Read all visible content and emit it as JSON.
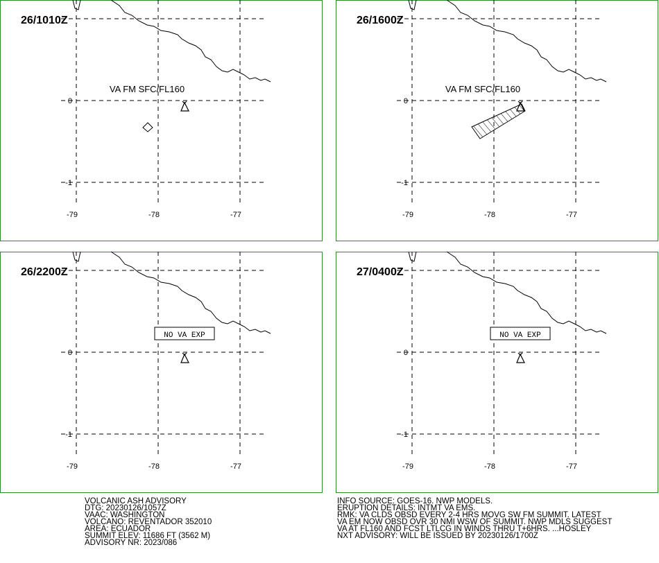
{
  "panels": [
    {
      "time": "26/1010Z",
      "annotation": "VA FM SFC/FL160",
      "boxed": false,
      "xticks": [
        -79,
        -78,
        -77
      ],
      "yticks": [
        0,
        -1
      ]
    },
    {
      "time": "26/1600Z",
      "annotation": "VA FM SFC/FL160",
      "boxed": false,
      "xticks": [
        -79,
        -78,
        -77
      ],
      "yticks": [
        0,
        -1
      ]
    },
    {
      "time": "26/2200Z",
      "annotation": "NO VA EXP",
      "boxed": true,
      "xticks": [
        -79,
        -78,
        -77
      ],
      "yticks": [
        0,
        -1
      ]
    },
    {
      "time": "27/0400Z",
      "annotation": "NO VA EXP",
      "boxed": true,
      "xticks": [
        -79,
        -78,
        -77
      ],
      "yticks": [
        0,
        -1
      ]
    }
  ],
  "advisory_left": [
    "VOLCANIC ASH ADVISORY",
    "DTG: 20230126/1057Z",
    "VAAC: WASHINGTON",
    "VOLCANO: REVENTADOR 352010",
    "AREA: ECUADOR",
    "SUMMIT ELEV: 11686 FT (3562 M)",
    "ADVISORY NR: 2023/086"
  ],
  "advisory_right": [
    "INFO SOURCE: GOES-16. NWP MODELS.",
    "ERUPTION DETAILS: INTMT VA EMS.",
    "RMK: VA CLDS OBSD EVERY 2-4 HRS MOVG SW FM SUMMIT. LATEST",
    "VA EM NOW OBSD OVR 30 NMI WSW OF SUMMIT. NWP MDLS SUGGEST",
    "VA AT FL160 AND FCST LTLCG IN WINDS THRU T+6HRS. ...HOSLEY",
    "NXT ADVISORY: WILL BE ISSUED BY 20230126/1700Z"
  ]
}
